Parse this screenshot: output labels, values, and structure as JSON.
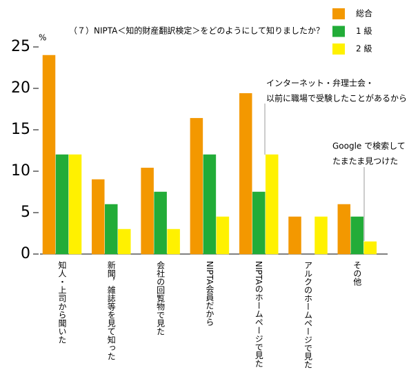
{
  "chart_data": {
    "type": "bar",
    "title": "（７）NIPTA＜知的財産翻訳検定＞をどのようにして知りましたか？",
    "y_label": "%",
    "categories": [
      "知人・上司から聞いた",
      "新聞，雑誌等を見て知った",
      "会社の回覧物で見た",
      "NIPTA会員だから",
      "NIPTAのホームページで見た",
      "アルクのホームページで見た",
      "その他"
    ],
    "series": [
      {
        "name": "総合",
        "color": "#f39800",
        "values": [
          24,
          9,
          10.4,
          16.4,
          19.4,
          4.5,
          6
        ]
      },
      {
        "name": "1 級",
        "color": "#22ac38",
        "values": [
          12,
          6,
          7.5,
          12,
          7.5,
          0,
          4.5
        ]
      },
      {
        "name": "2 級",
        "color": "#fff100",
        "values": [
          12,
          3,
          3,
          4.5,
          12,
          4.5,
          1.5
        ]
      }
    ],
    "ylim": [
      0,
      25
    ],
    "yticks": [
      0,
      5,
      10,
      15,
      20,
      25
    ],
    "grid": false,
    "legend": "upper right",
    "annotations": [
      [
        "インターネット・弁理士会・",
        "以前に職場で受験したことがあるから"
      ],
      [
        "Google で検索して",
        "たまたま見つけた"
      ]
    ]
  }
}
